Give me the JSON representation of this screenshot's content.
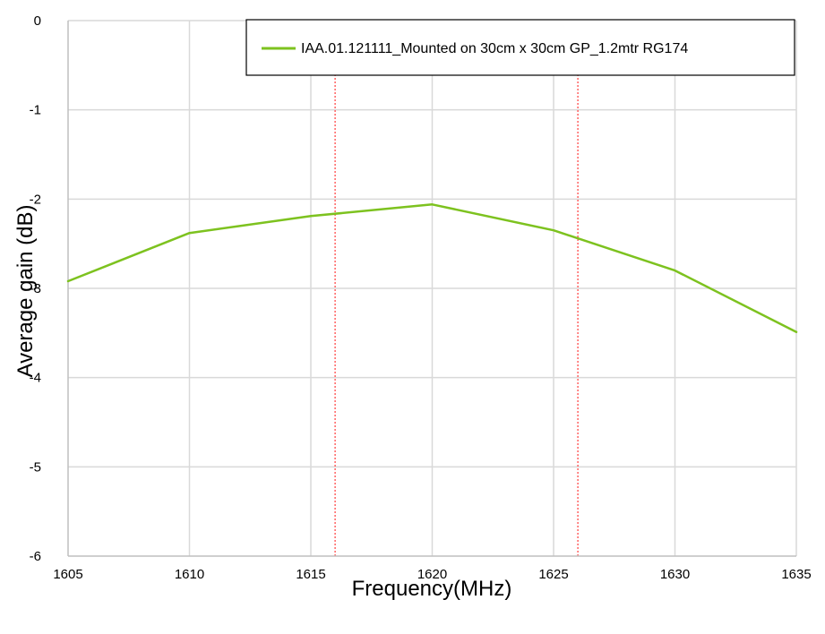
{
  "chart_data": {
    "type": "line",
    "title": "",
    "xlabel": "Frequency(MHz)",
    "ylabel": "Average  gain (dB)",
    "xlim": [
      1605,
      1635
    ],
    "ylim": [
      -6,
      0
    ],
    "x_ticks": [
      1605,
      1610,
      1615,
      1620,
      1625,
      1630,
      1635
    ],
    "y_ticks": [
      0,
      -1,
      -2,
      -3,
      -4,
      -5,
      -6
    ],
    "grid": true,
    "legend_position": "top-right",
    "series": [
      {
        "name": "IAA.01.121111_Mounted on 30cm x 30cm GP_1.2mtr RG174",
        "color": "#7dc21f",
        "x": [
          1605,
          1610,
          1615,
          1620,
          1625,
          1630,
          1635
        ],
        "y": [
          -2.92,
          -2.38,
          -2.19,
          -2.06,
          -2.35,
          -2.8,
          -3.49
        ]
      }
    ],
    "reference_lines": {
      "orientation": "vertical",
      "style": "dotted",
      "color": "#ff3b3b",
      "x": [
        1616,
        1626
      ]
    },
    "colors": {
      "grid": "#d9d9d9",
      "axis": "#bfbfbf",
      "legend_border": "#000000"
    }
  }
}
